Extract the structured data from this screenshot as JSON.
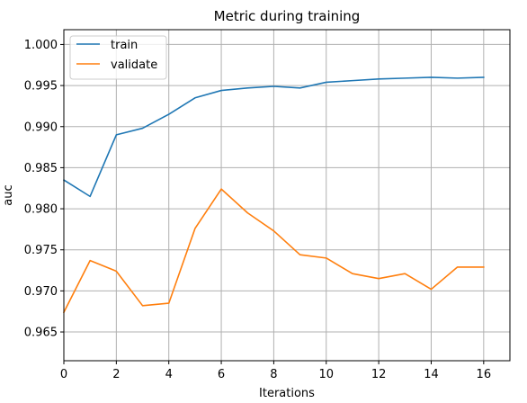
{
  "chart_data": {
    "type": "line",
    "title": "Metric during training",
    "xlabel": "Iterations",
    "ylabel": "auc",
    "xlim": [
      0,
      17
    ],
    "ylim": [
      0.9615,
      1.0018
    ],
    "xticks": [
      0,
      2,
      4,
      6,
      8,
      10,
      12,
      14,
      16
    ],
    "xtick_labels": [
      "0",
      "2",
      "4",
      "6",
      "8",
      "10",
      "12",
      "14",
      "16"
    ],
    "yticks": [
      0.965,
      0.97,
      0.975,
      0.98,
      0.985,
      0.99,
      0.995,
      1.0
    ],
    "ytick_labels": [
      "0.965",
      "0.970",
      "0.975",
      "0.980",
      "0.985",
      "0.990",
      "0.995",
      "1.000"
    ],
    "grid": true,
    "legend_position": "top-left",
    "x": [
      0,
      1,
      2,
      3,
      4,
      5,
      6,
      7,
      8,
      9,
      10,
      11,
      12,
      13,
      14,
      15,
      16
    ],
    "series": [
      {
        "name": "train",
        "color": "#1f77b4",
        "values": [
          0.9835,
          0.9815,
          0.989,
          0.9898,
          0.9915,
          0.9935,
          0.9944,
          0.9947,
          0.9949,
          0.9947,
          0.9954,
          0.9956,
          0.9958,
          0.9959,
          0.996,
          0.9959,
          0.996
        ]
      },
      {
        "name": "validate",
        "color": "#ff7f0e",
        "values": [
          0.9674,
          0.9737,
          0.9724,
          0.9682,
          0.9685,
          0.9776,
          0.9824,
          0.9795,
          0.9773,
          0.9744,
          0.974,
          0.9721,
          0.9715,
          0.9721,
          0.9702,
          0.9729,
          0.9729
        ]
      }
    ]
  }
}
